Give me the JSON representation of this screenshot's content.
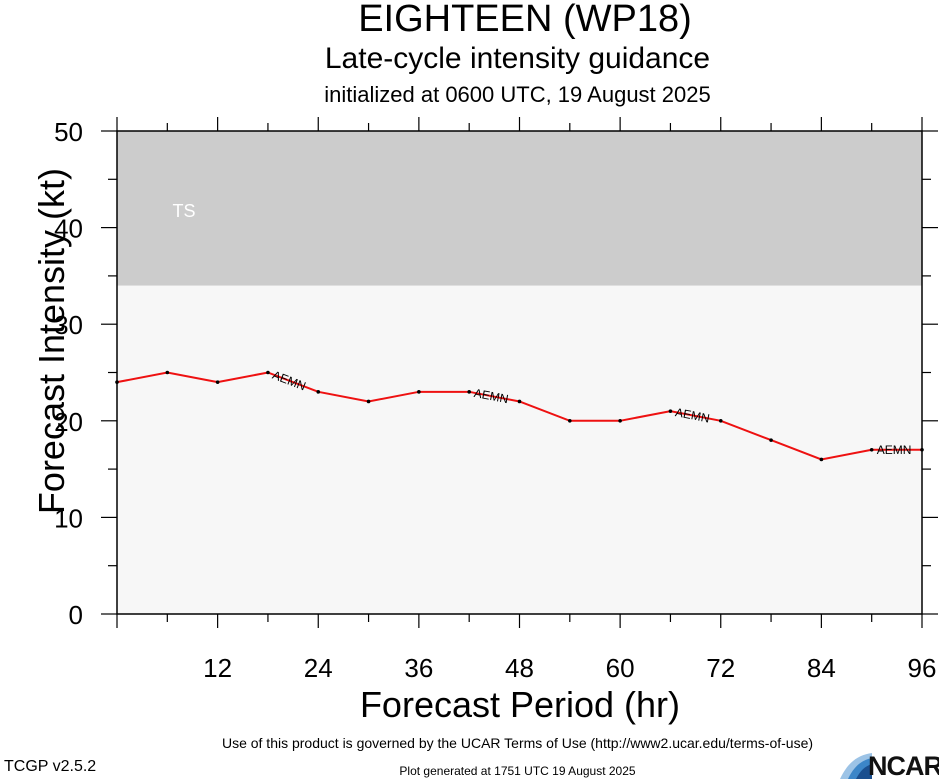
{
  "chart_data": {
    "type": "line",
    "title": "EIGHTEEN (WP18)",
    "subtitle": "Late-cycle intensity guidance",
    "initialized": "initialized at 0600 UTC, 19 August 2025",
    "xlabel": "Forecast Period (hr)",
    "ylabel": "Forecast Intensity (kt)",
    "xlim": [
      0,
      96
    ],
    "ylim": [
      0,
      50
    ],
    "x_ticks": [
      12,
      24,
      36,
      48,
      60,
      72,
      84,
      96
    ],
    "y_ticks": [
      0,
      10,
      20,
      30,
      40,
      50
    ],
    "bands": [
      {
        "name": "TS",
        "from": 34,
        "to": 50,
        "color": "#cccccc"
      }
    ],
    "below_band_color": "#f7f7f7",
    "grid": false,
    "series": [
      {
        "name": "AEMN",
        "color": "#ee1111",
        "x": [
          0,
          6,
          12,
          18,
          24,
          30,
          36,
          42,
          48,
          54,
          60,
          66,
          72,
          78,
          84,
          90,
          96
        ],
        "y": [
          24,
          25,
          24,
          25,
          23,
          22,
          23,
          23,
          22,
          20,
          20,
          21,
          20,
          18,
          16,
          17,
          17
        ],
        "label_at_x": [
          18,
          42,
          66,
          90
        ]
      }
    ]
  },
  "footer": {
    "terms": "Use of this product is governed by the UCAR Terms of Use (http://www2.ucar.edu/terms-of-use)",
    "generated": "Plot generated at 1751 UTC   19 August 2025",
    "version": "TCGP v2.5.2",
    "logo_text": "NCAR"
  },
  "logo_name": "ncar-logo",
  "logo_colors": [
    "#1a4f8f",
    "#3c86c8",
    "#9cc3e6"
  ]
}
